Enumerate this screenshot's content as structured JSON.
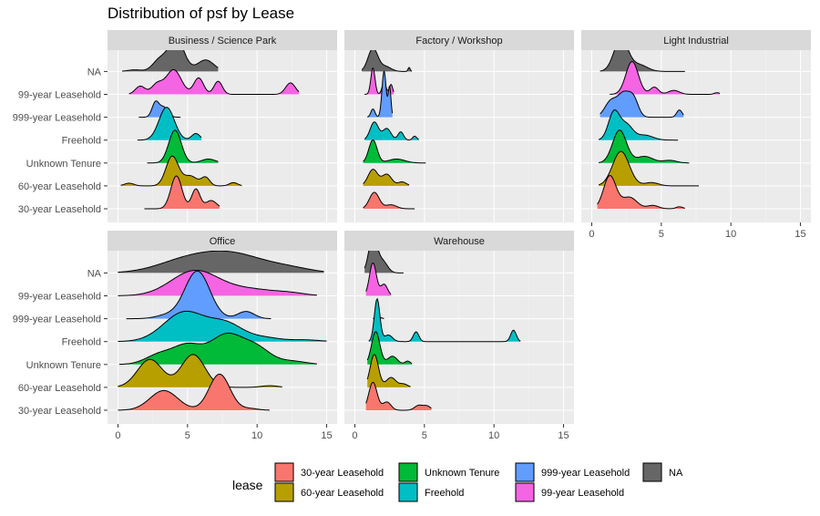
{
  "chart_data": {
    "type": "ridgeline",
    "title": "Distribution of psf by Lease",
    "xlabel": "",
    "ylabel": "",
    "xlim": [
      0,
      15
    ],
    "x_ticks": [
      0,
      5,
      10,
      15
    ],
    "grid": true,
    "legend_position": "bottom",
    "legend_title": "lease",
    "categories": [
      "30-year Leasehold",
      "60-year Leasehold",
      "Unknown Tenure",
      "Freehold",
      "999-year Leasehold",
      "99-year Leasehold",
      "NA"
    ],
    "colors": {
      "30-year Leasehold": "#F8766D",
      "60-year Leasehold": "#B79F00",
      "Unknown Tenure": "#00BA38",
      "Freehold": "#00BFC4",
      "999-year Leasehold": "#619CFF",
      "99-year Leasehold": "#F564E3",
      "NA": "#666666"
    },
    "panel_background": "#EBEBEB",
    "strip_background": "#D9D9D9",
    "panels": [
      {
        "name": "Business / Science Park",
        "ridges": [
          {
            "lease": "NA",
            "range": [
              0.3,
              7.2
            ],
            "peaks": [
              [
                4.2,
                1.0,
                0.55
              ],
              [
                3.0,
                0.35,
                0.5
              ],
              [
                6.3,
                0.35,
                0.6
              ],
              [
                1.2,
                0.05,
                0.5
              ]
            ]
          },
          {
            "lease": "99-year Leasehold",
            "range": [
              0.8,
              13.0
            ],
            "peaks": [
              [
                1.6,
                0.25,
                0.35
              ],
              [
                4.0,
                0.75,
                0.55
              ],
              [
                2.8,
                0.3,
                0.4
              ],
              [
                5.8,
                0.5,
                0.35
              ],
              [
                7.2,
                0.4,
                0.3
              ],
              [
                12.4,
                0.35,
                0.35
              ]
            ]
          },
          {
            "lease": "999-year Leasehold",
            "range": [
              1.5,
              4.5
            ],
            "peaks": [
              [
                2.7,
                0.45,
                0.25
              ],
              [
                3.3,
                0.3,
                0.3
              ]
            ]
          },
          {
            "lease": "Freehold",
            "range": [
              1.4,
              6.0
            ],
            "peaks": [
              [
                3.5,
                1.0,
                0.55
              ],
              [
                5.6,
                0.2,
                0.3
              ]
            ]
          },
          {
            "lease": "Unknown Tenure",
            "range": [
              2.1,
              7.2
            ],
            "peaks": [
              [
                4.1,
                1.0,
                0.45
              ],
              [
                6.5,
                0.12,
                0.5
              ]
            ]
          },
          {
            "lease": "60-year Leasehold",
            "range": [
              0.2,
              8.9
            ],
            "peaks": [
              [
                3.9,
                0.9,
                0.45
              ],
              [
                0.8,
                0.08,
                0.35
              ],
              [
                5.2,
                0.3,
                0.5
              ],
              [
                6.3,
                0.25,
                0.3
              ],
              [
                8.3,
                0.1,
                0.3
              ]
            ]
          },
          {
            "lease": "30-year Leasehold",
            "range": [
              1.9,
              7.3
            ],
            "peaks": [
              [
                4.2,
                1.0,
                0.4
              ],
              [
                5.6,
                0.6,
                0.3
              ],
              [
                6.7,
                0.25,
                0.4
              ]
            ]
          }
        ]
      },
      {
        "name": "Factory / Workshop",
        "ridges": [
          {
            "lease": "NA",
            "range": [
              0.5,
              4.1
            ],
            "peaks": [
              [
                1.3,
                0.7,
                0.35
              ],
              [
                2.2,
                0.15,
                0.4
              ],
              [
                3.9,
                0.12,
                0.08
              ]
            ]
          },
          {
            "lease": "99-year Leasehold",
            "range": [
              0.7,
              2.8
            ],
            "peaks": [
              [
                1.3,
                0.8,
                0.15
              ],
              [
                2.1,
                0.35,
                0.15
              ],
              [
                2.6,
                0.3,
                0.12
              ]
            ]
          },
          {
            "lease": "999-year Leasehold",
            "range": [
              0.9,
              2.7
            ],
            "peaks": [
              [
                2.1,
                1.4,
                0.15
              ],
              [
                1.3,
                0.25,
                0.15
              ],
              [
                2.5,
                0.9,
                0.1
              ]
            ]
          },
          {
            "lease": "Freehold",
            "range": [
              0.7,
              4.6
            ],
            "peaks": [
              [
                1.4,
                0.55,
                0.3
              ],
              [
                3.3,
                0.25,
                0.2
              ],
              [
                4.3,
                0.12,
                0.15
              ],
              [
                2.3,
                0.35,
                0.3
              ]
            ]
          },
          {
            "lease": "Unknown Tenure",
            "range": [
              0.6,
              5.1
            ],
            "peaks": [
              [
                1.3,
                0.7,
                0.3
              ],
              [
                3.0,
                0.12,
                0.6
              ]
            ]
          },
          {
            "lease": "60-year Leasehold",
            "range": [
              0.6,
              3.9
            ],
            "peaks": [
              [
                1.3,
                0.5,
                0.35
              ],
              [
                2.3,
                0.35,
                0.35
              ],
              [
                3.4,
                0.12,
                0.3
              ]
            ]
          },
          {
            "lease": "30-year Leasehold",
            "range": [
              0.6,
              4.3
            ],
            "peaks": [
              [
                1.4,
                0.5,
                0.35
              ],
              [
                2.6,
                0.12,
                0.4
              ]
            ]
          }
        ]
      },
      {
        "name": "Light Industrial",
        "ridges": [
          {
            "lease": "NA",
            "range": [
              0.6,
              6.7
            ],
            "peaks": [
              [
                2.1,
                1.0,
                0.5
              ],
              [
                3.4,
                0.2,
                0.6
              ]
            ]
          },
          {
            "lease": "99-year Leasehold",
            "range": [
              1.3,
              9.2
            ],
            "peaks": [
              [
                2.9,
                1.0,
                0.45
              ],
              [
                4.5,
                0.22,
                0.3
              ],
              [
                5.9,
                0.12,
                0.4
              ],
              [
                9.0,
                0.05,
                0.2
              ]
            ]
          },
          {
            "lease": "999-year Leasehold",
            "range": [
              0.6,
              6.6
            ],
            "peaks": [
              [
                1.4,
                0.5,
                0.45
              ],
              [
                2.3,
                0.65,
                0.4
              ],
              [
                3.0,
                0.55,
                0.35
              ],
              [
                6.3,
                0.22,
                0.2
              ]
            ]
          },
          {
            "lease": "Freehold",
            "range": [
              0.5,
              6.2
            ],
            "peaks": [
              [
                1.6,
                0.85,
                0.4
              ],
              [
                2.5,
                0.45,
                0.45
              ],
              [
                3.8,
                0.15,
                0.6
              ]
            ]
          },
          {
            "lease": "Unknown Tenure",
            "range": [
              0.5,
              7.0
            ],
            "peaks": [
              [
                2.0,
                1.0,
                0.5
              ],
              [
                3.8,
                0.2,
                0.6
              ],
              [
                5.6,
                0.08,
                0.5
              ]
            ]
          },
          {
            "lease": "60-year Leasehold",
            "range": [
              0.5,
              7.7
            ],
            "peaks": [
              [
                2.1,
                1.05,
                0.6
              ],
              [
                4.3,
                0.1,
                0.5
              ]
            ]
          },
          {
            "lease": "30-year Leasehold",
            "range": [
              0.4,
              6.7
            ],
            "peaks": [
              [
                1.3,
                1.0,
                0.45
              ],
              [
                2.7,
                0.35,
                0.55
              ],
              [
                4.4,
                0.1,
                0.4
              ],
              [
                6.3,
                0.06,
                0.25
              ]
            ]
          }
        ]
      },
      {
        "name": "Office",
        "ridges": [
          {
            "lease": "NA",
            "range": [
              0.0,
              14.8
            ],
            "peaks": [
              [
                8.0,
                0.6,
                2.5
              ],
              [
                4.5,
                0.25,
                2.0
              ],
              [
                12.5,
                0.1,
                1.5
              ]
            ]
          },
          {
            "lease": "99-year Leasehold",
            "range": [
              0.0,
              14.3
            ],
            "peaks": [
              [
                5.5,
                0.75,
                1.7
              ],
              [
                9.5,
                0.2,
                2.0
              ],
              [
                12.5,
                0.05,
                1.0
              ]
            ]
          },
          {
            "lease": "999-year Leasehold",
            "range": [
              0.6,
              11.0
            ],
            "peaks": [
              [
                5.7,
                1.45,
                0.9
              ],
              [
                9.2,
                0.22,
                0.6
              ],
              [
                3.5,
                0.1,
                0.8
              ]
            ]
          },
          {
            "lease": "Freehold",
            "range": [
              0.0,
              15.0
            ],
            "peaks": [
              [
                4.8,
                0.9,
                1.5
              ],
              [
                7.8,
                0.5,
                1.2
              ],
              [
                10.5,
                0.12,
                1.2
              ],
              [
                13.5,
                0.05,
                1.0
              ]
            ]
          },
          {
            "lease": "Unknown Tenure",
            "range": [
              0.1,
              14.3
            ],
            "peaks": [
              [
                7.8,
                0.9,
                1.2
              ],
              [
                5.0,
                0.55,
                1.0
              ],
              [
                3.0,
                0.3,
                1.0
              ],
              [
                10.0,
                0.45,
                1.0
              ],
              [
                12.5,
                0.1,
                1.0
              ]
            ]
          },
          {
            "lease": "60-year Leasehold",
            "range": [
              0.0,
              11.8
            ],
            "peaks": [
              [
                2.3,
                0.85,
                0.9
              ],
              [
                5.4,
                1.0,
                0.85
              ],
              [
                10.9,
                0.05,
                0.6
              ]
            ]
          },
          {
            "lease": "30-year Leasehold",
            "range": [
              0.0,
              10.9
            ],
            "peaks": [
              [
                3.3,
                0.6,
                1.0
              ],
              [
                7.3,
                1.1,
                0.75
              ],
              [
                9.5,
                0.05,
                0.6
              ]
            ]
          }
        ]
      },
      {
        "name": "Warehouse",
        "ridges": [
          {
            "lease": "NA",
            "range": [
              0.7,
              3.5
            ],
            "peaks": [
              [
                1.3,
                1.1,
                0.3
              ],
              [
                2.0,
                0.35,
                0.35
              ]
            ]
          },
          {
            "lease": "99-year Leasehold",
            "range": [
              0.8,
              2.6
            ],
            "peaks": [
              [
                1.3,
                1.0,
                0.25
              ],
              [
                2.1,
                0.35,
                0.25
              ]
            ]
          },
          {
            "lease": "999-year Leasehold",
            "range": [
              1.3,
              2.1
            ],
            "peaks": [
              [
                1.7,
                0.05,
                0.2
              ]
            ]
          },
          {
            "lease": "Freehold",
            "range": [
              1.0,
              11.9
            ],
            "peaks": [
              [
                1.6,
                1.3,
                0.2
              ],
              [
                2.4,
                0.2,
                0.3
              ],
              [
                4.4,
                0.3,
                0.2
              ],
              [
                11.4,
                0.35,
                0.2
              ]
            ]
          },
          {
            "lease": "Unknown Tenure",
            "range": [
              0.9,
              4.1
            ],
            "peaks": [
              [
                1.5,
                1.0,
                0.3
              ],
              [
                2.7,
                0.25,
                0.35
              ],
              [
                3.8,
                0.1,
                0.2
              ]
            ]
          },
          {
            "lease": "60-year Leasehold",
            "range": [
              0.9,
              4.0
            ],
            "peaks": [
              [
                1.4,
                1.0,
                0.3
              ],
              [
                2.6,
                0.3,
                0.35
              ],
              [
                3.5,
                0.1,
                0.3
              ]
            ]
          },
          {
            "lease": "30-year Leasehold",
            "range": [
              0.8,
              5.5
            ],
            "peaks": [
              [
                1.3,
                0.85,
                0.3
              ],
              [
                2.3,
                0.25,
                0.3
              ],
              [
                4.6,
                0.15,
                0.3
              ],
              [
                5.2,
                0.12,
                0.25
              ]
            ]
          }
        ]
      }
    ],
    "legend_order": [
      "30-year Leasehold",
      "60-year Leasehold",
      "Unknown Tenure",
      "Freehold",
      "999-year Leasehold",
      "99-year Leasehold",
      "NA"
    ]
  }
}
